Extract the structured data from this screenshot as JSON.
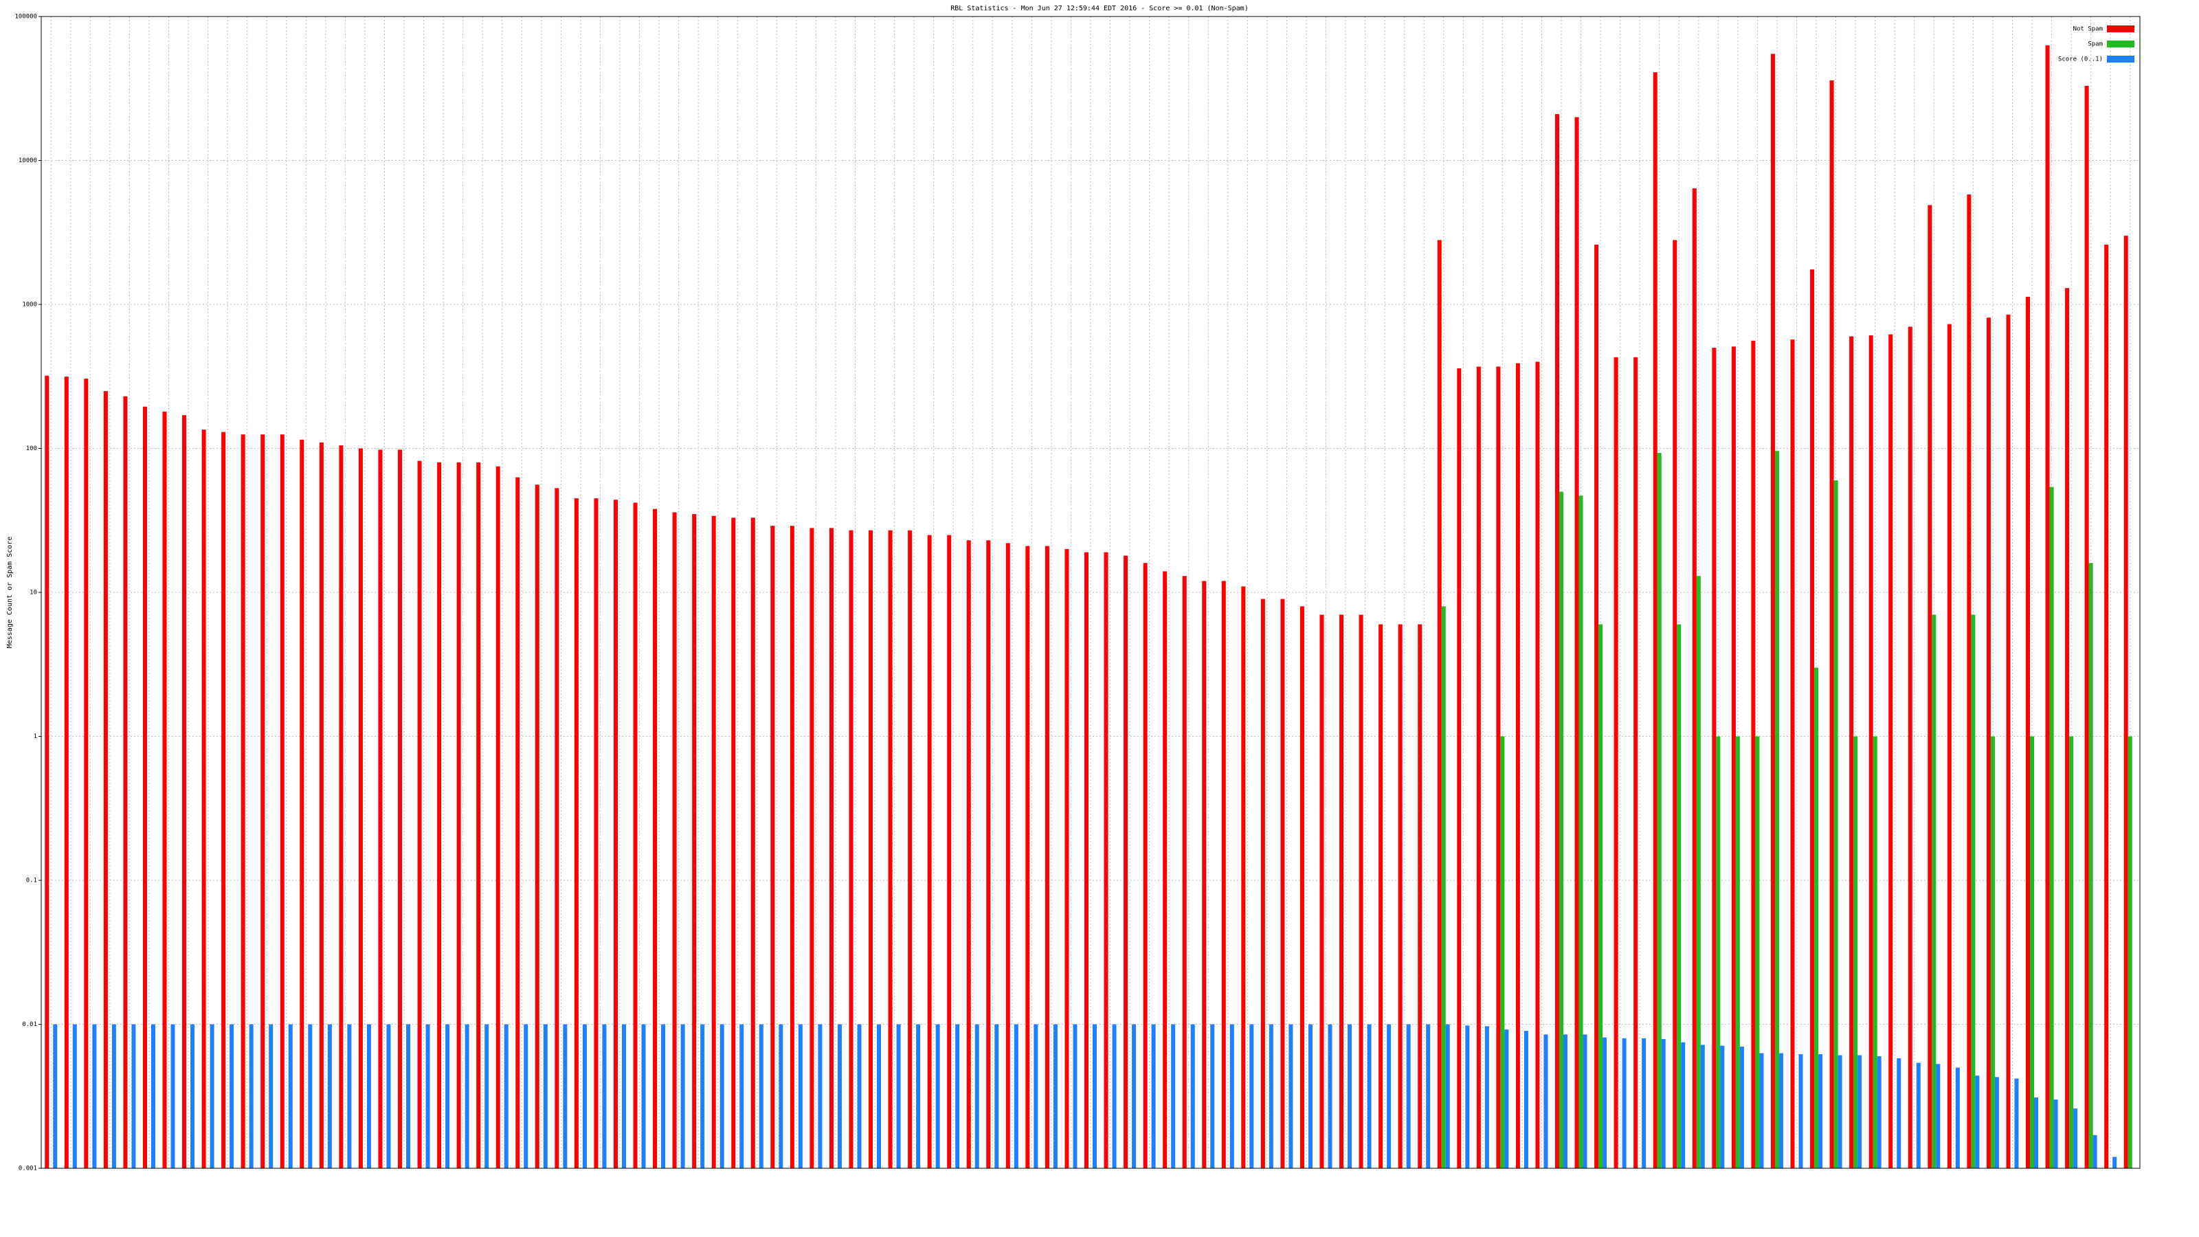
{
  "chart_data": {
    "type": "bar",
    "title": "RBL Statistics - Mon Jun 27 12:59:44 EDT 2016 - Score >= 0.01 (Non-Spam)",
    "y_label": "Message Count or Spam Score",
    "log_scale": true,
    "grid": true,
    "legend": "top-right",
    "ylim": [
      0.001,
      100000
    ],
    "yticks": [
      0.001,
      0.01,
      0.1,
      1,
      10,
      100,
      1000,
      10000,
      100000
    ],
    "categories": [
      null,
      null,
      null,
      null,
      null,
      null,
      null,
      null,
      null,
      null,
      null,
      null,
      null,
      null,
      null,
      null,
      null,
      null,
      null,
      null,
      null,
      null,
      null,
      null,
      null,
      null,
      null,
      null,
      null,
      null,
      null,
      null,
      null,
      null,
      null,
      null,
      null,
      null,
      null,
      null,
      null,
      null,
      null,
      null,
      null,
      null,
      null,
      null,
      null,
      null,
      null,
      null,
      null,
      null,
      null,
      null,
      null,
      null,
      null,
      null,
      null,
      null,
      null,
      null,
      null,
      null,
      null,
      null,
      null,
      null,
      null,
      null,
      null,
      null,
      null,
      null,
      null,
      null,
      null,
      null,
      null,
      null,
      null,
      null,
      null,
      null,
      null,
      null,
      null,
      null,
      null,
      null,
      null,
      null,
      null,
      null,
      null,
      null,
      null,
      null,
      null,
      null,
      null,
      null,
      null,
      null,
      null
    ],
    "series": [
      {
        "name": "Not Spam",
        "color": "#ff0000",
        "values": [
          320,
          315,
          305,
          250,
          230,
          195,
          180,
          170,
          135,
          130,
          125,
          125,
          125,
          115,
          110,
          105,
          100,
          98,
          98,
          82,
          80,
          80,
          80,
          75,
          63,
          56,
          53,
          45,
          45,
          44,
          42,
          38,
          36,
          35,
          34,
          33,
          33,
          29,
          29,
          28,
          28,
          27,
          27,
          27,
          27,
          25,
          25,
          23,
          23,
          22,
          21,
          21,
          20,
          19,
          19,
          18,
          16,
          14,
          13,
          12,
          12,
          11,
          9,
          9,
          8,
          7,
          7,
          7,
          6,
          6,
          6,
          2800,
          360,
          370,
          370,
          390,
          400,
          21000,
          20000,
          2600,
          430,
          430,
          41000,
          2800,
          6400,
          500,
          510,
          560,
          55000,
          570,
          1750,
          36000,
          600,
          610,
          620,
          700,
          4900,
          730,
          5800,
          810,
          850,
          1130,
          63000,
          1300,
          33000,
          2600,
          3000
        ]
      },
      {
        "name": "Spam",
        "color": "#22bb22",
        "values": [
          null,
          null,
          null,
          null,
          null,
          null,
          null,
          null,
          null,
          null,
          null,
          null,
          null,
          null,
          null,
          null,
          null,
          null,
          null,
          null,
          null,
          null,
          null,
          null,
          null,
          null,
          null,
          null,
          null,
          null,
          null,
          null,
          null,
          null,
          null,
          null,
          null,
          null,
          null,
          null,
          null,
          null,
          null,
          null,
          null,
          null,
          null,
          null,
          null,
          null,
          null,
          null,
          null,
          null,
          null,
          null,
          null,
          null,
          null,
          null,
          null,
          null,
          null,
          null,
          null,
          null,
          null,
          null,
          null,
          null,
          null,
          8,
          null,
          null,
          1,
          null,
          null,
          50,
          47,
          6,
          null,
          null,
          93,
          6,
          13,
          1,
          1,
          1,
          96,
          null,
          3,
          60,
          1,
          1,
          null,
          null,
          7,
          null,
          7,
          1,
          null,
          1,
          54,
          1,
          16,
          null,
          1
        ]
      },
      {
        "name": "Score (0..1)",
        "color": "#1e7fff",
        "values": [
          0.01,
          0.01,
          0.01,
          0.01,
          0.01,
          0.01,
          0.01,
          0.01,
          0.01,
          0.01,
          0.01,
          0.01,
          0.01,
          0.01,
          0.01,
          0.01,
          0.01,
          0.01,
          0.01,
          0.01,
          0.01,
          0.01,
          0.01,
          0.01,
          0.01,
          0.01,
          0.01,
          0.01,
          0.01,
          0.01,
          0.01,
          0.01,
          0.01,
          0.01,
          0.01,
          0.01,
          0.01,
          0.01,
          0.01,
          0.01,
          0.01,
          0.01,
          0.01,
          0.01,
          0.01,
          0.01,
          0.01,
          0.01,
          0.01,
          0.01,
          0.01,
          0.01,
          0.01,
          0.01,
          0.01,
          0.01,
          0.01,
          0.01,
          0.01,
          0.01,
          0.01,
          0.01,
          0.01,
          0.01,
          0.01,
          0.01,
          0.01,
          0.01,
          0.01,
          0.01,
          0.01,
          0.01,
          0.0098,
          0.0097,
          0.0092,
          0.009,
          0.0085,
          0.0085,
          0.0085,
          0.0081,
          0.008,
          0.008,
          0.0079,
          0.0075,
          0.0072,
          0.0071,
          0.007,
          0.0063,
          0.0063,
          0.0062,
          0.0062,
          0.0061,
          0.0061,
          0.006,
          0.0058,
          0.0054,
          0.0053,
          0.005,
          0.0044,
          0.0043,
          0.0042,
          0.0031,
          0.003,
          0.0026,
          0.0017,
          0.0012,
          0.001
        ]
      }
    ]
  }
}
